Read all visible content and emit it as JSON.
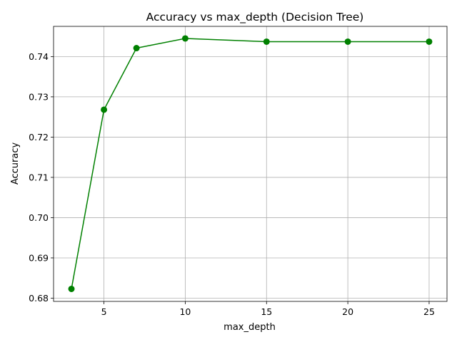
{
  "chart_data": {
    "type": "line",
    "title": "Accuracy vs max_depth (Decision Tree)",
    "xlabel": "max_depth",
    "ylabel": "Accuracy",
    "xlim": [
      1.9,
      26.1
    ],
    "ylim": [
      0.6792,
      0.7475
    ],
    "xticks": [
      5,
      10,
      15,
      20,
      25
    ],
    "yticks": [
      0.68,
      0.69,
      0.7,
      0.71,
      0.72,
      0.73,
      0.74
    ],
    "ytick_labels": [
      "0.68",
      "0.69",
      "0.70",
      "0.71",
      "0.72",
      "0.73",
      "0.74"
    ],
    "grid": true,
    "series": [
      {
        "color": "#008000",
        "marker": "circle",
        "x": [
          3,
          5,
          7,
          10,
          15,
          20,
          25
        ],
        "y": [
          0.6823,
          0.7268,
          0.7421,
          0.7445,
          0.7437,
          0.7437,
          0.7437
        ]
      }
    ]
  }
}
